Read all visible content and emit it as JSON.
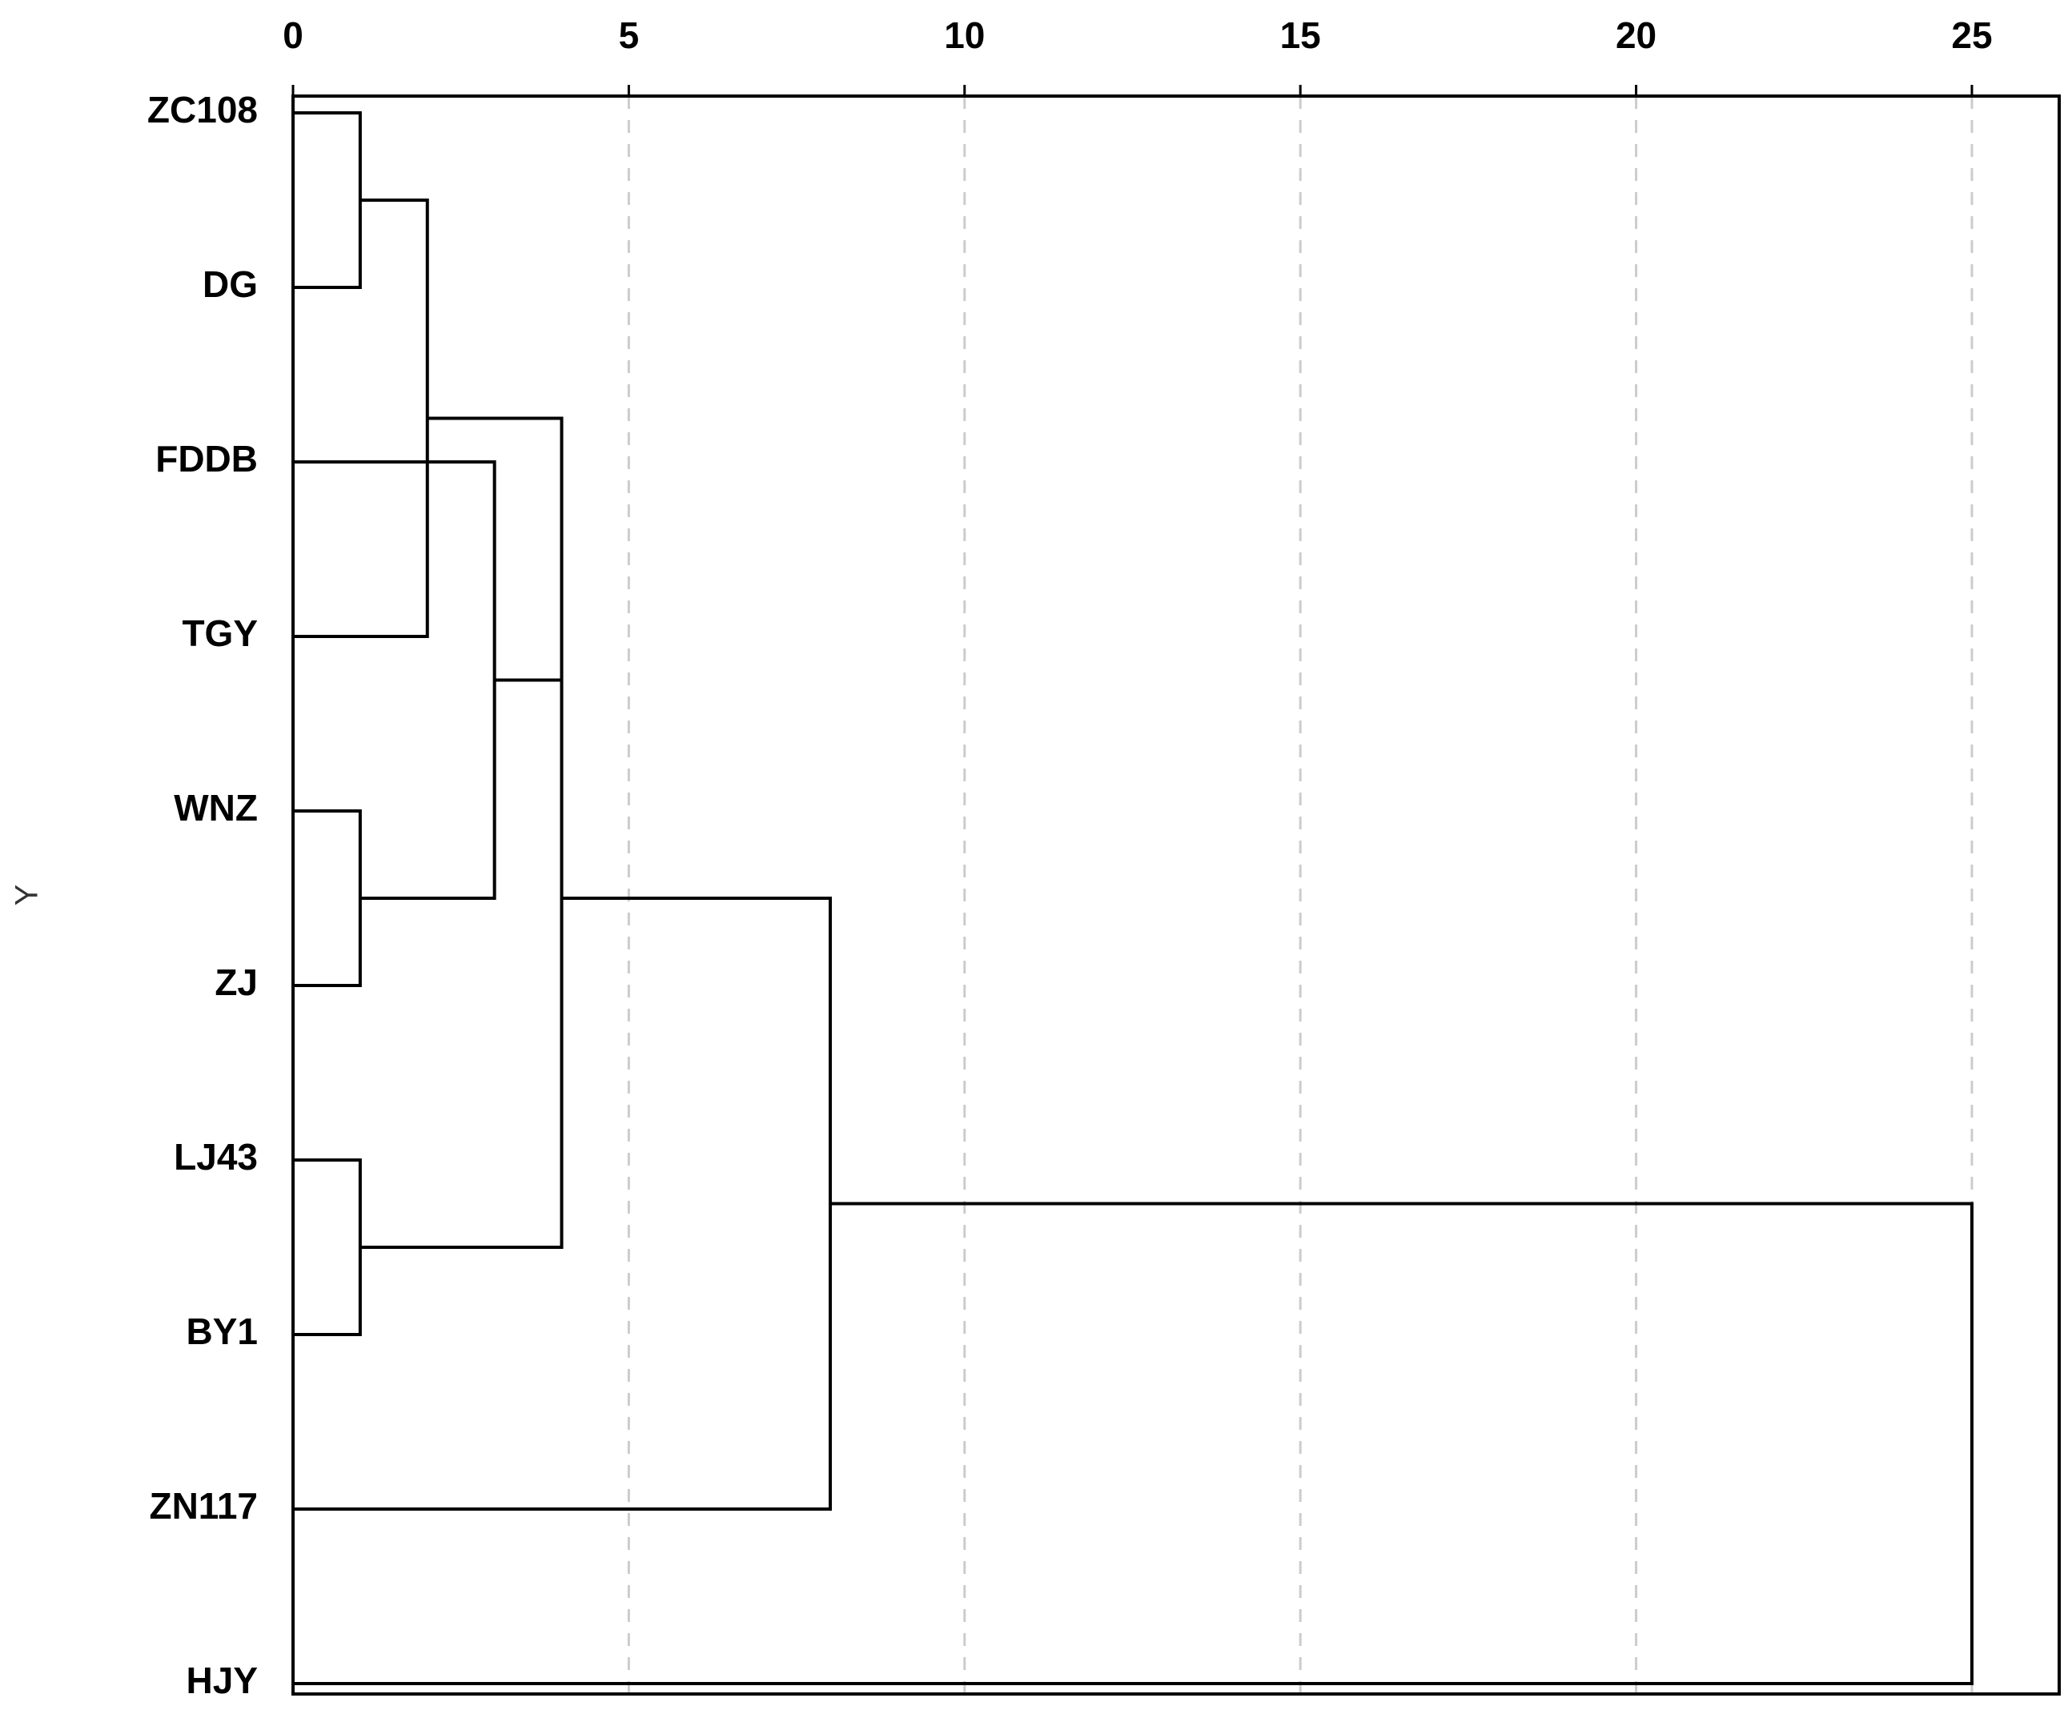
{
  "chart_data": {
    "type": "dendrogram",
    "orientation": "horizontal",
    "title": "",
    "xlabel": "",
    "ylabel": "Y",
    "xlim": [
      0,
      26.3
    ],
    "x_ticks": [
      0,
      5,
      10,
      15,
      20,
      25
    ],
    "x_tick_labels": [
      "0",
      "5",
      "10",
      "15",
      "20",
      "25"
    ],
    "grid": "vertical-dashed",
    "leaves": [
      "ZC108",
      "DG",
      "FDDB",
      "TGY",
      "WNZ",
      "ZJ",
      "LJ43",
      "BY1",
      "ZN117",
      "HJY"
    ],
    "merges": [
      {
        "id": "c1",
        "left": "ZC108",
        "right": "DG",
        "height": 1
      },
      {
        "id": "c2",
        "left": "c1",
        "right": "TGY",
        "height": 2
      },
      {
        "id": "c3",
        "left": "WNZ",
        "right": "ZJ",
        "height": 1
      },
      {
        "id": "c4",
        "left": "c3",
        "right": "FDDB",
        "height": 3
      },
      {
        "id": "c5",
        "left": "c4",
        "right": "c2",
        "height": 4
      },
      {
        "id": "c6",
        "left": "LJ43",
        "right": "BY1",
        "height": 1
      },
      {
        "id": "c7",
        "left": "c5",
        "right": "c6",
        "height": 4
      },
      {
        "id": "c8",
        "left": "c7",
        "right": "ZN117",
        "height": 8
      },
      {
        "id": "c9",
        "left": "c8",
        "right": "HJY",
        "height": 25
      }
    ],
    "colors": {
      "line": "#000000",
      "grid": "#cccccc",
      "frame": "#000000"
    }
  }
}
